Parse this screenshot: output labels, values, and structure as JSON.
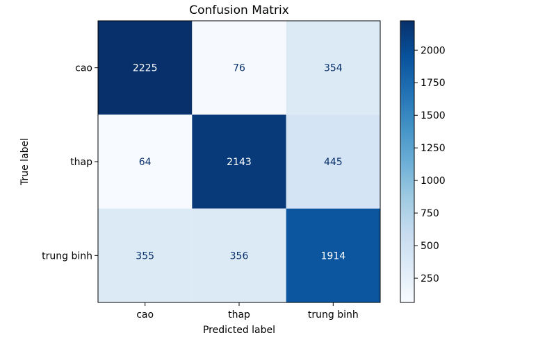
{
  "chart_data": {
    "type": "heatmap",
    "title": "Confusion Matrix",
    "xlabel": "Predicted label",
    "ylabel": "True label",
    "x_categories": [
      "cao",
      "thap",
      "trung binh"
    ],
    "y_categories": [
      "cao",
      "thap",
      "trung binh"
    ],
    "values": [
      [
        2225,
        76,
        354
      ],
      [
        64,
        2143,
        445
      ],
      [
        355,
        356,
        1914
      ]
    ],
    "colormap": "Blues",
    "colorbar": {
      "min": 64,
      "max": 2225,
      "ticks": [
        250,
        500,
        750,
        1000,
        1250,
        1500,
        1750,
        2000
      ]
    },
    "grid": false
  }
}
